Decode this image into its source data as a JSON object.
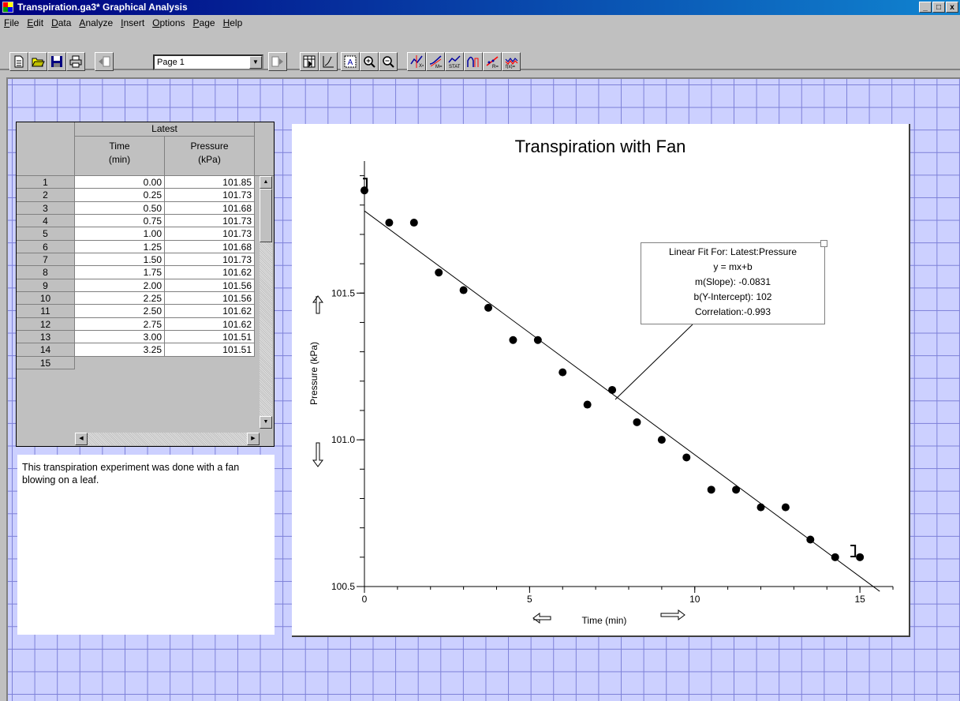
{
  "window": {
    "title": "Transpiration.ga3* Graphical Analysis",
    "controls": [
      "_",
      "□",
      "x"
    ]
  },
  "menu": [
    {
      "name": "File",
      "u": "F",
      "rest": "ile"
    },
    {
      "name": "Edit",
      "u": "E",
      "rest": "dit"
    },
    {
      "name": "Data",
      "u": "D",
      "rest": "ata"
    },
    {
      "name": "Analyze",
      "u": "A",
      "rest": "nalyze"
    },
    {
      "name": "Insert",
      "u": "I",
      "rest": "nsert"
    },
    {
      "name": "Options",
      "u": "O",
      "rest": "ptions"
    },
    {
      "name": "Page",
      "u": "P",
      "rest": "age"
    },
    {
      "name": "Help",
      "u": "H",
      "rest": "elp"
    }
  ],
  "toolbar": {
    "page_select": "Page 1",
    "icons": [
      "new-file-icon",
      "open-folder-icon",
      "save-disk-icon",
      "print-icon",
      "prev-page-icon",
      "next-page-icon",
      "data-table-icon",
      "graph-icon",
      "autoscale-icon",
      "zoom-in-icon",
      "zoom-out-icon",
      "examine-icon",
      "tangent-icon",
      "statistics-icon",
      "integral-icon",
      "linear-fit-icon",
      "curve-fit-icon"
    ]
  },
  "table": {
    "dataset": "Latest",
    "columns": [
      {
        "name": "Time",
        "unit": "(min)"
      },
      {
        "name": "Pressure",
        "unit": "(kPa)"
      }
    ],
    "rows": [
      [
        "1",
        "0.00",
        "101.85"
      ],
      [
        "2",
        "0.25",
        "101.73"
      ],
      [
        "3",
        "0.50",
        "101.68"
      ],
      [
        "4",
        "0.75",
        "101.73"
      ],
      [
        "5",
        "1.00",
        "101.73"
      ],
      [
        "6",
        "1.25",
        "101.68"
      ],
      [
        "7",
        "1.50",
        "101.73"
      ],
      [
        "8",
        "1.75",
        "101.62"
      ],
      [
        "9",
        "2.00",
        "101.56"
      ],
      [
        "10",
        "2.25",
        "101.56"
      ],
      [
        "11",
        "2.50",
        "101.62"
      ],
      [
        "12",
        "2.75",
        "101.62"
      ],
      [
        "13",
        "3.00",
        "101.51"
      ],
      [
        "14",
        "3.25",
        "101.51"
      ],
      [
        "15",
        "",
        ""
      ]
    ]
  },
  "notes": {
    "text": "This transpiration experiment was done with a fan blowing on a leaf."
  },
  "chart_data": {
    "type": "scatter",
    "title": "Transpiration with Fan",
    "xlabel": "Time (min)",
    "ylabel": "Pressure (kPa)",
    "xlim": [
      0,
      16
    ],
    "ylim": [
      100.5,
      101.95
    ],
    "x_ticks": [
      0,
      5,
      10,
      15
    ],
    "y_ticks": [
      "100.5",
      "101.0",
      "101.5"
    ],
    "points": [
      [
        0.0,
        101.85
      ],
      [
        0.75,
        101.74
      ],
      [
        1.5,
        101.74
      ],
      [
        2.25,
        101.57
      ],
      [
        3.0,
        101.51
      ],
      [
        3.75,
        101.45
      ],
      [
        4.5,
        101.34
      ],
      [
        5.25,
        101.34
      ],
      [
        6.0,
        101.23
      ],
      [
        6.75,
        101.12
      ],
      [
        7.5,
        101.17
      ],
      [
        8.25,
        101.06
      ],
      [
        9.0,
        101.0
      ],
      [
        9.75,
        100.94
      ],
      [
        10.5,
        100.83
      ],
      [
        11.25,
        100.83
      ],
      [
        12.0,
        100.77
      ],
      [
        12.75,
        100.77
      ],
      [
        13.5,
        100.66
      ],
      [
        14.25,
        100.6
      ],
      [
        15.0,
        100.6
      ]
    ],
    "fit": {
      "slope": -0.0831,
      "intercept": 101.78,
      "lines": [
        "Linear Fit For:  Latest:Pressure",
        "y = mx+b",
        "m(Slope): -0.0831",
        "b(Y-Intercept): 102",
        "Correlation:-0.993"
      ]
    },
    "grid": false
  }
}
